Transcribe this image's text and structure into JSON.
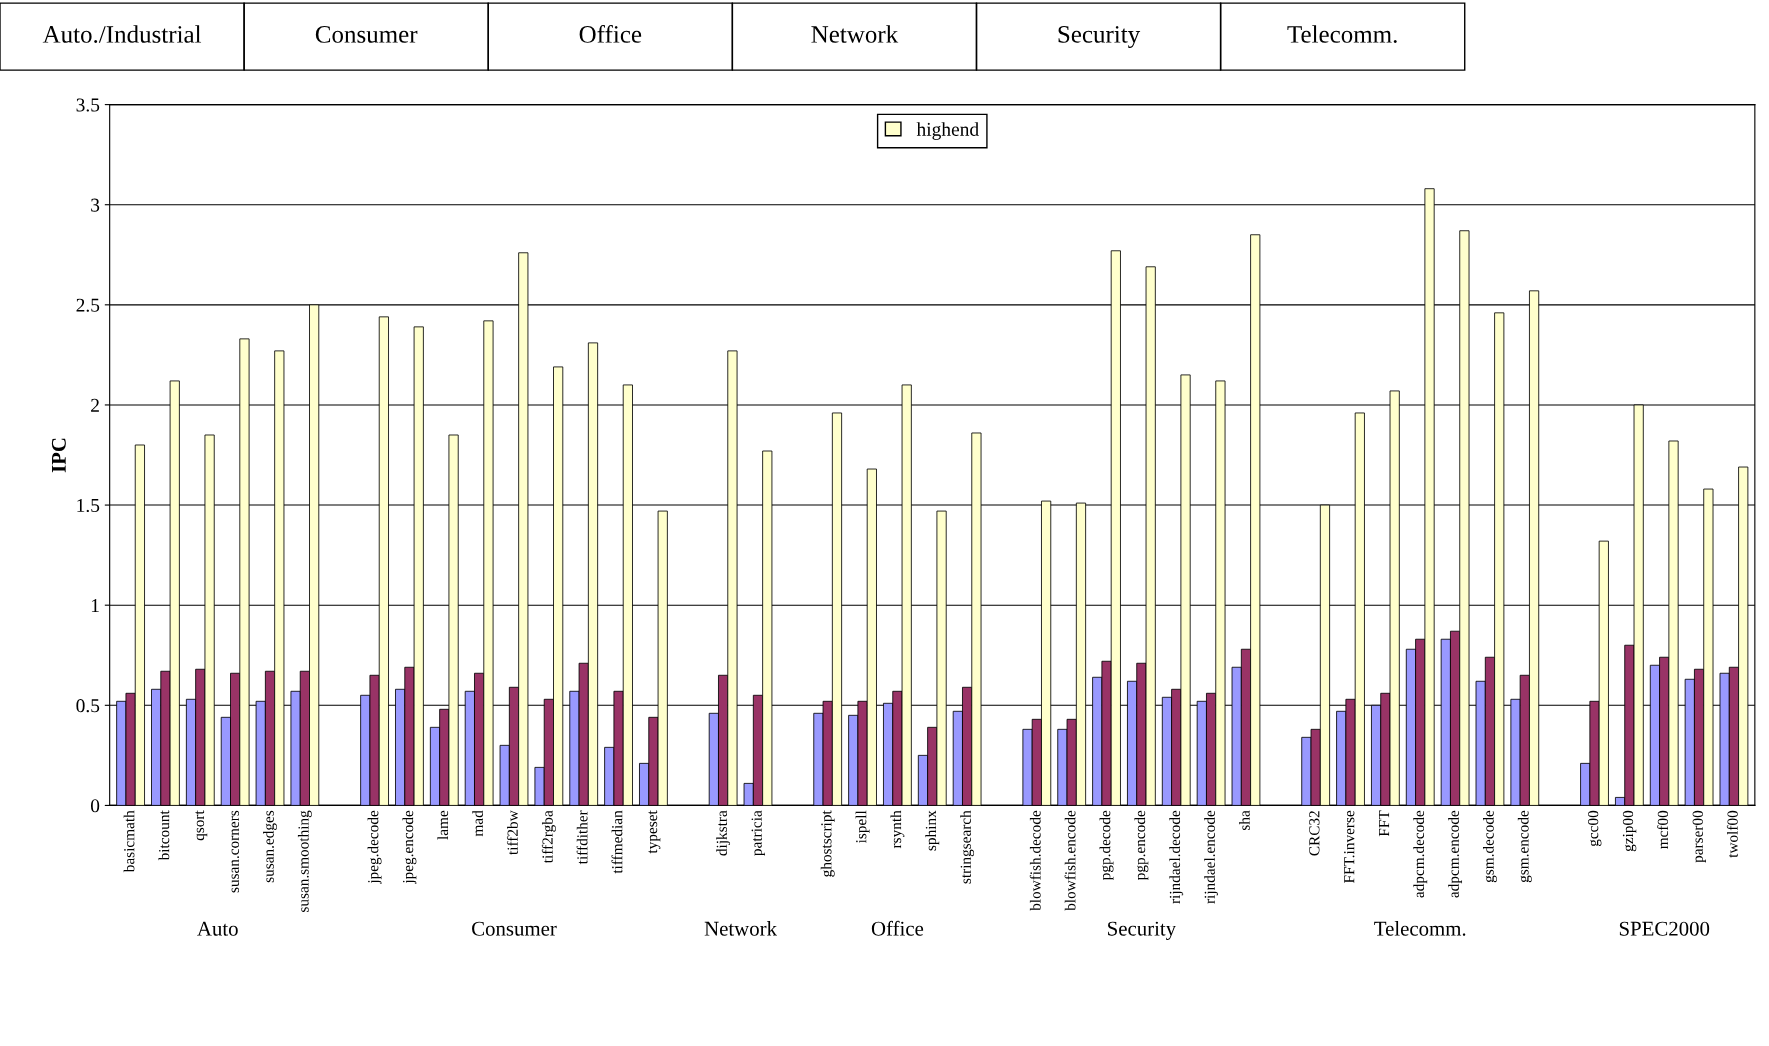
{
  "chart_data": {
    "type": "bar",
    "ylabel": "IPC",
    "categories": [
      "basicmath",
      "bitcount",
      "qsort",
      "susan.corners",
      "susan.edges",
      "susan.smoothing",
      null,
      "jpeg.decode",
      "jpeg.encode",
      "lame",
      "mad",
      "tiff2bw",
      "tiff2rgba",
      "tiffdither",
      "tiffmedian",
      "typeset",
      null,
      "dijkstra",
      "patricia",
      null,
      "ghostscript",
      "ispell",
      "rsynth",
      "sphinx",
      "stringsearch",
      null,
      "blowfish.decode",
      "blowfish.encode",
      "pgp.decode",
      "pgp.encode",
      "rijndael.decode",
      "rijndael.encode",
      "sha",
      null,
      "CRC32",
      "FFT.inverse",
      "FFT",
      "adpcm.decode",
      "adpcm.encode",
      "gsm.decode",
      "gsm.encode",
      null,
      "gcc00",
      "gzip00",
      "mcf00",
      "parser00",
      "twolf00"
    ],
    "series": [
      {
        "color": "#9999ff",
        "values": [
          0.52,
          0.58,
          0.53,
          0.44,
          0.52,
          0.57,
          null,
          0.55,
          0.58,
          0.39,
          0.57,
          0.3,
          0.19,
          0.57,
          0.29,
          0.21,
          null,
          0.46,
          0.11,
          null,
          0.46,
          0.45,
          0.51,
          0.25,
          0.47,
          null,
          0.38,
          0.38,
          0.64,
          0.62,
          0.54,
          0.52,
          0.69,
          null,
          0.34,
          0.47,
          0.5,
          0.78,
          0.83,
          0.62,
          0.53,
          null,
          0.21,
          0.04,
          0.7,
          0.63,
          0.66
        ]
      },
      {
        "color": "#993366",
        "values": [
          0.56,
          0.67,
          0.68,
          0.66,
          0.67,
          0.67,
          null,
          0.65,
          0.69,
          0.48,
          0.66,
          0.59,
          0.53,
          0.71,
          0.57,
          0.44,
          null,
          0.65,
          0.55,
          null,
          0.52,
          0.52,
          0.57,
          0.39,
          0.59,
          null,
          0.43,
          0.43,
          0.72,
          0.71,
          0.58,
          0.56,
          0.78,
          null,
          0.38,
          0.53,
          0.56,
          0.83,
          0.87,
          0.74,
          0.65,
          null,
          0.52,
          0.8,
          0.74,
          0.68,
          0.69
        ]
      },
      {
        "name": "highend",
        "color": "#ffffcc",
        "values": [
          1.8,
          2.12,
          1.85,
          2.33,
          2.27,
          2.5,
          null,
          2.44,
          2.39,
          1.85,
          2.42,
          2.76,
          2.19,
          2.31,
          2.1,
          1.47,
          null,
          2.27,
          1.77,
          null,
          1.96,
          1.68,
          2.1,
          1.47,
          1.86,
          null,
          1.52,
          1.51,
          2.77,
          2.69,
          2.15,
          2.12,
          2.85,
          null,
          1.5,
          1.96,
          2.07,
          3.08,
          2.87,
          2.46,
          2.57,
          null,
          1.32,
          2.0,
          1.82,
          1.58,
          1.69
        ]
      }
    ],
    "ylim": [
      0,
      3.5
    ],
    "yticks": [
      0,
      0.5,
      1,
      1.5,
      2,
      2.5,
      3,
      3.5
    ],
    "grid": "y",
    "legend": "top",
    "annotations": [
      "Auto./Industrial",
      "Consumer",
      "Office",
      "Network",
      "Security",
      "Telecomm.",
      "Auto",
      "Consumer",
      "Network",
      "Office",
      "Security",
      "Telecomm.",
      "SPEC2000"
    ]
  }
}
